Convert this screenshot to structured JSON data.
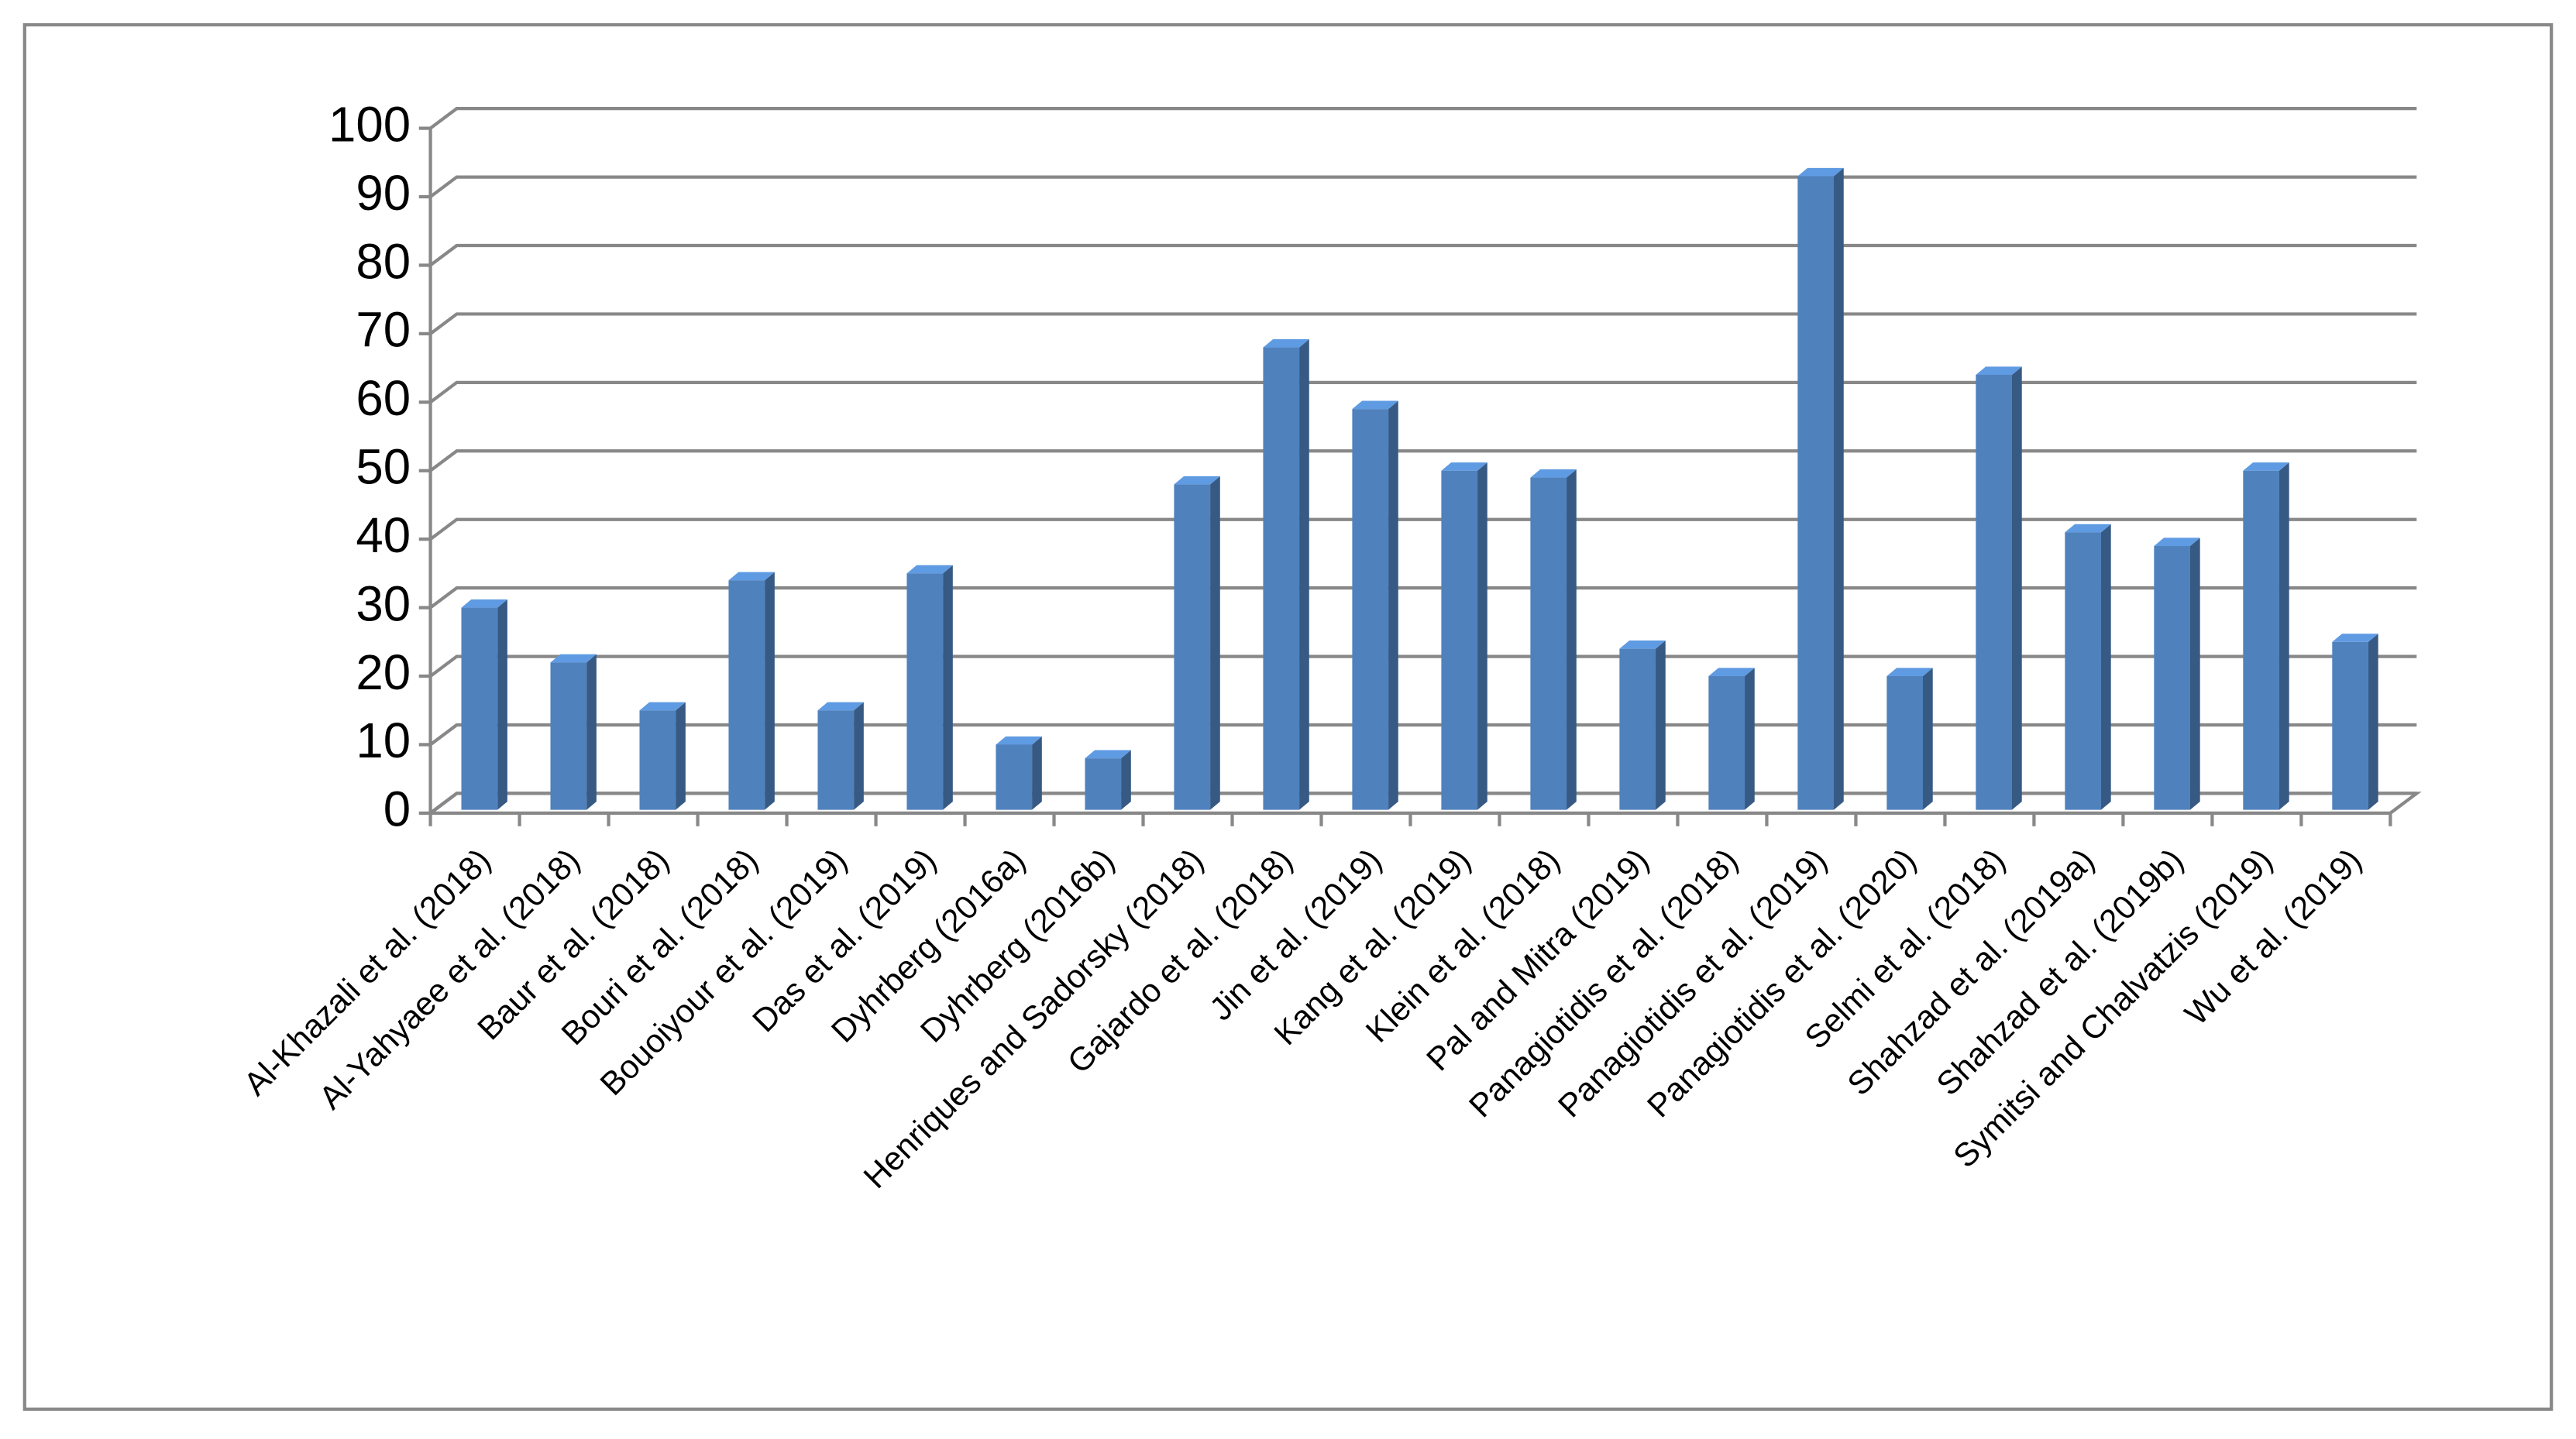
{
  "chart_data": {
    "type": "bar3d",
    "categories": [
      "Al-Khazali et al. (2018)",
      "Al-Yahyaee et al. (2018)",
      "Baur et al. (2018)",
      "Bouri et al. (2018)",
      "Bouoiyour et al. (2019)",
      "Das et al. (2019)",
      "Dyhrberg (2016a)",
      "Dyhrberg (2016b)",
      "Henriques and Sadorsky (2018)",
      "Gajardo et al. (2018)",
      "Jin et al. (2019)",
      "Kang et al. (2019)",
      "Klein et al. (2018)",
      "Pal and Mitra (2019)",
      "Panagiotidis et al. (2018)",
      "Panagiotidis et al. (2019)",
      "Panagiotidis et al. (2020)",
      "Selmi et al. (2018)",
      "Shahzad et al. (2019a)",
      "Shahzad et al. (2019b)",
      "Symitsi and Chalvatzis (2019)",
      "Wu et al. (2019)"
    ],
    "values": [
      30,
      22,
      15,
      34,
      15,
      35,
      10,
      8,
      48,
      68,
      59,
      50,
      49,
      24,
      20,
      93,
      20,
      64,
      41,
      39,
      50,
      25
    ],
    "color": "#4f81bd",
    "ylim": [
      0,
      100
    ],
    "yticks": [
      0,
      10,
      20,
      30,
      40,
      50,
      60,
      70,
      80,
      90,
      100
    ],
    "grid": true
  }
}
